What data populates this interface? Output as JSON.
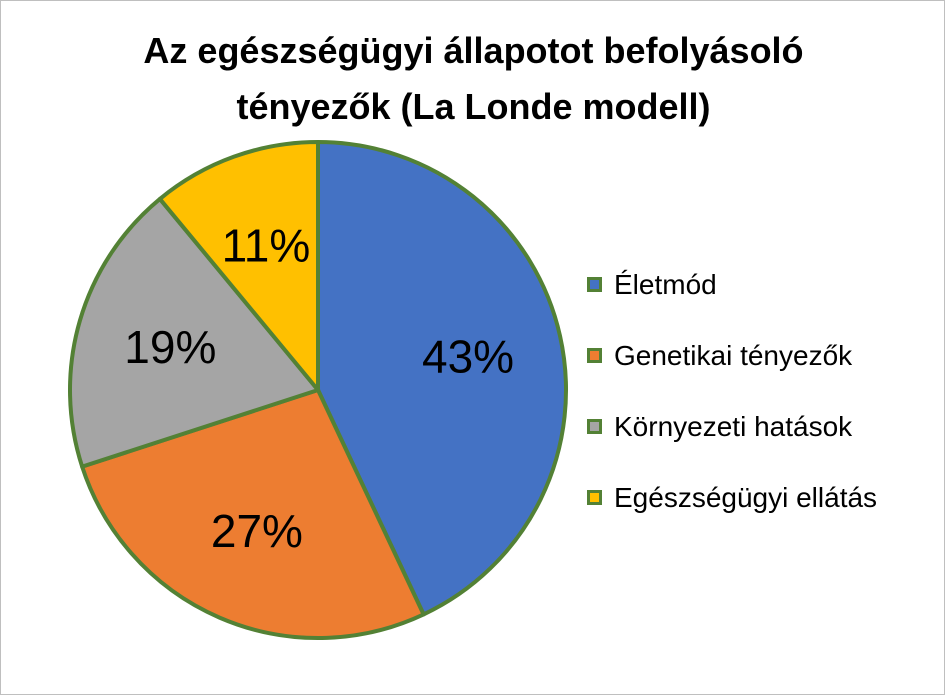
{
  "chart_data": {
    "type": "pie",
    "title_lines": [
      "Az egészségügyi állapotot befolyásoló",
      "tényezők (La Londe modell)"
    ],
    "categories": [
      "Életmód",
      "Genetikai tényezők",
      "Környezeti hatások",
      "Egészségügyi ellátás"
    ],
    "values": [
      43,
      27,
      19,
      11
    ],
    "data_labels": [
      "43%",
      "27%",
      "19%",
      "11%"
    ],
    "colors": [
      "#4472C4",
      "#ED7D31",
      "#A5A5A5",
      "#FFC000"
    ],
    "slice_border_color": "#538135",
    "legend_position": "right",
    "start_angle": "12 o'clock",
    "direction": "clockwise"
  }
}
